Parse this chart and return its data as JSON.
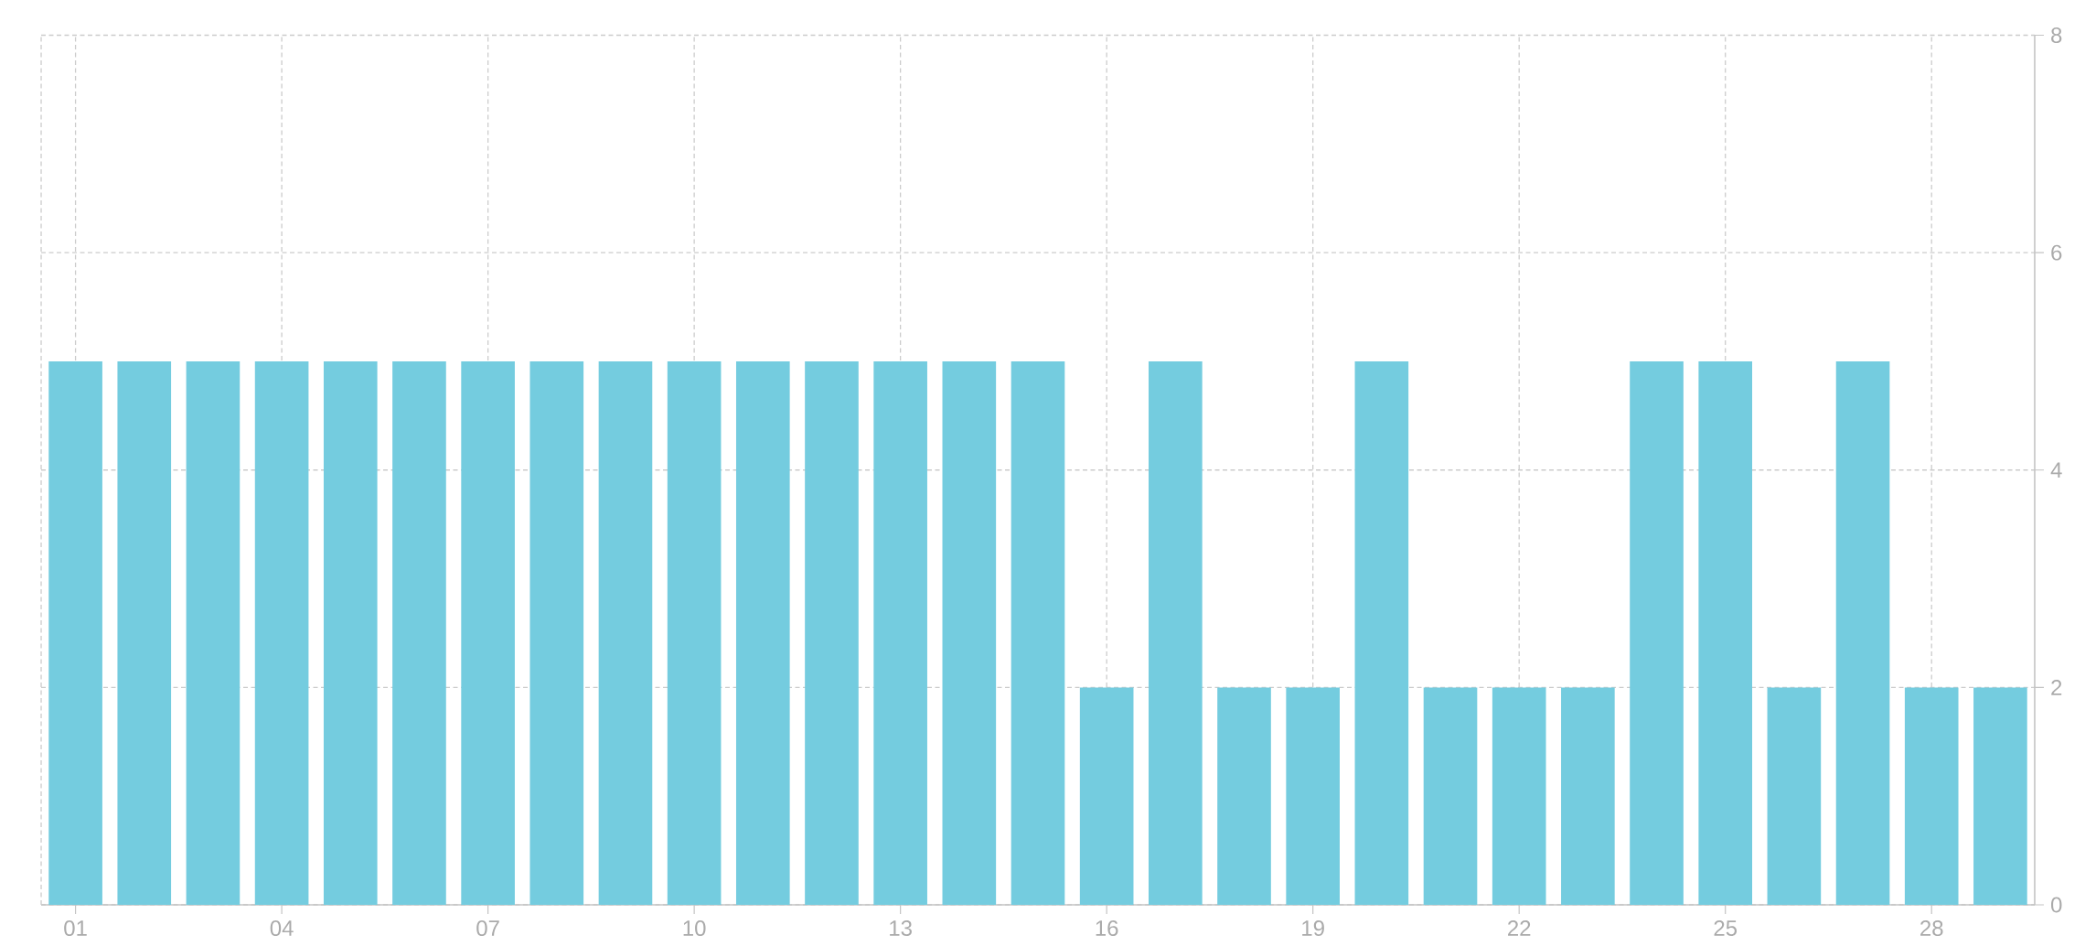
{
  "chart_data": {
    "type": "bar",
    "categories": [
      "01",
      null,
      null,
      "04",
      null,
      null,
      "07",
      null,
      null,
      "10",
      null,
      null,
      "13",
      null,
      null,
      "16",
      null,
      null,
      "19",
      null,
      null,
      "22",
      null,
      null,
      "25",
      null,
      null,
      "28",
      null
    ],
    "values": [
      5,
      5,
      5,
      5,
      5,
      5,
      5,
      5,
      5,
      5,
      5,
      5,
      5,
      5,
      5,
      2,
      5,
      2,
      2,
      5,
      2,
      2,
      2,
      5,
      5,
      2,
      5,
      2,
      2
    ],
    "color": "#74ccdf",
    "ylim": [
      0,
      8
    ],
    "yticks": [
      0,
      2,
      4,
      6,
      8
    ],
    "grid": true
  }
}
